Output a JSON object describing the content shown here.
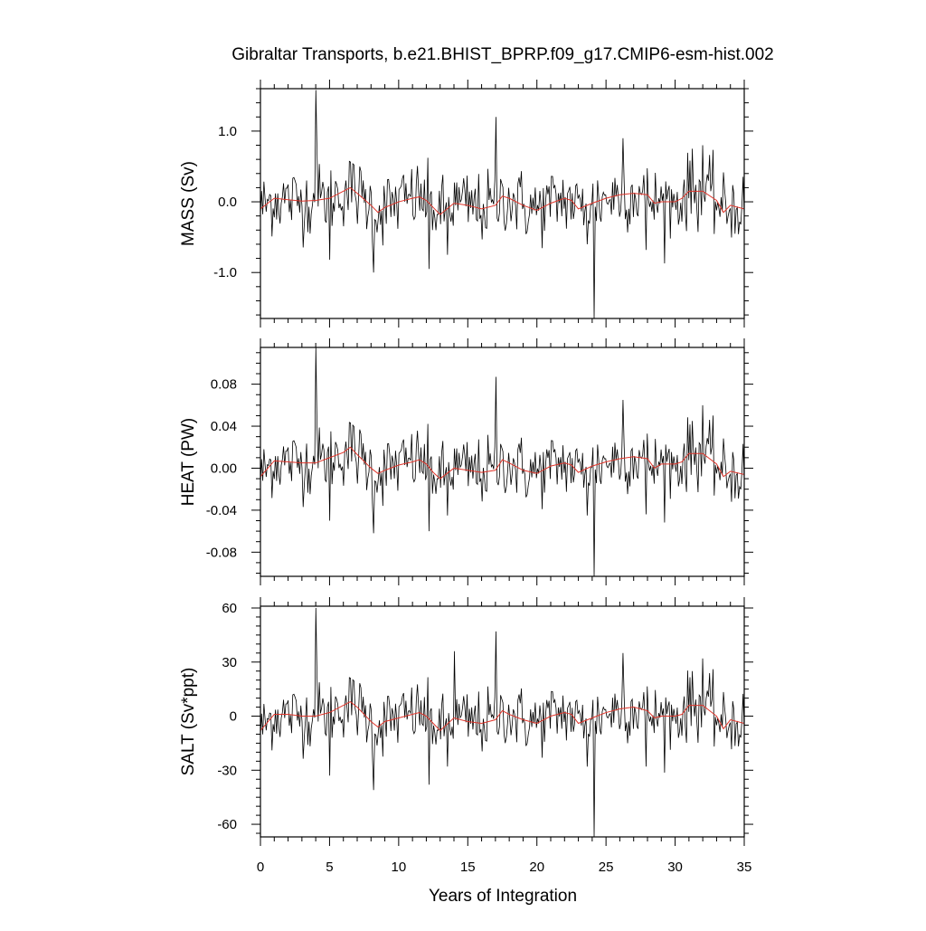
{
  "figure": {
    "title": "Gibraltar Transports, b.e21.BHIST_BPRP.f09_g17.CMIP6-esm-hist.002",
    "xlabel": "Years of Integration",
    "colors": {
      "raw": "#000000",
      "smoothed": "#e0342a",
      "frame": "#000000"
    }
  },
  "chart_data": [
    {
      "type": "line",
      "ylabel": "MASS (Sv)",
      "xlim": [
        0,
        35
      ],
      "ylim": [
        -1.65,
        1.6
      ],
      "yticks": [
        -1.0,
        0.0,
        1.0
      ],
      "ytick_labels": [
        "-1.0",
        "0.0",
        "1.0"
      ],
      "yminor_step": 0.2,
      "xticks": [
        0,
        5,
        10,
        15,
        20,
        25,
        30,
        35
      ],
      "xtick_labels": [],
      "xminor_step": 1,
      "raw_scale": 0.25,
      "spikes": [
        [
          4.0,
          1.58
        ],
        [
          4.08,
          0.7
        ],
        [
          5.0,
          -0.82
        ],
        [
          8.2,
          -1.0
        ],
        [
          12.2,
          -0.95
        ],
        [
          13.5,
          -0.75
        ],
        [
          17.0,
          1.2
        ],
        [
          23.6,
          -0.6
        ],
        [
          24.1,
          -1.65
        ],
        [
          26.2,
          0.9
        ],
        [
          27.9,
          -0.68
        ],
        [
          31.2,
          0.75
        ],
        [
          32.0,
          0.8
        ]
      ],
      "smoothed": {
        "x": [
          0,
          1,
          2,
          3,
          4,
          5,
          6,
          6.5,
          7,
          8,
          8.5,
          9,
          10,
          11,
          11.5,
          12,
          12.5,
          13,
          14,
          15,
          16,
          17,
          17.5,
          18,
          19,
          20,
          21,
          22,
          22.5,
          23,
          24,
          25,
          26,
          27,
          28,
          28.5,
          29,
          30,
          30.5,
          31,
          32,
          33,
          33.5,
          34,
          35
        ],
        "y": [
          -0.1,
          0.05,
          0.03,
          0.01,
          0.02,
          0.05,
          0.15,
          0.2,
          0.12,
          -0.05,
          -0.15,
          -0.08,
          0.0,
          0.05,
          0.07,
          0.02,
          -0.08,
          -0.18,
          -0.02,
          -0.05,
          -0.1,
          -0.05,
          0.08,
          0.05,
          -0.05,
          -0.12,
          -0.02,
          0.05,
          0.02,
          -0.1,
          -0.02,
          0.05,
          0.1,
          0.12,
          0.1,
          -0.02,
          0.0,
          0.0,
          0.05,
          0.15,
          0.15,
          0.02,
          -0.15,
          -0.05,
          -0.1
        ]
      }
    },
    {
      "type": "line",
      "ylabel": "HEAT (PW)",
      "xlim": [
        0,
        35
      ],
      "ylim": [
        -0.103,
        0.115
      ],
      "yticks": [
        -0.08,
        -0.04,
        0.0,
        0.04,
        0.08
      ],
      "ytick_labels": [
        "-0.08",
        "-0.04",
        "0.00",
        "0.04",
        "0.08"
      ],
      "yminor_step": 0.01,
      "xticks": [
        0,
        5,
        10,
        15,
        20,
        25,
        30,
        35
      ],
      "xtick_labels": [],
      "xminor_step": 1,
      "raw_scale": 0.016,
      "spikes": [
        [
          4.0,
          0.115
        ],
        [
          4.08,
          0.04
        ],
        [
          5.0,
          -0.05
        ],
        [
          8.2,
          -0.062
        ],
        [
          12.2,
          -0.06
        ],
        [
          13.5,
          -0.045
        ],
        [
          17.0,
          0.087
        ],
        [
          23.6,
          -0.045
        ],
        [
          24.1,
          -0.103
        ],
        [
          26.2,
          0.065
        ],
        [
          27.9,
          -0.044
        ],
        [
          31.2,
          0.045
        ],
        [
          32.0,
          0.06
        ]
      ],
      "smoothed": {
        "x": [
          0,
          1,
          2,
          3,
          4,
          5,
          6,
          6.5,
          7,
          8,
          8.5,
          9,
          10,
          11,
          11.5,
          12,
          12.5,
          13,
          14,
          15,
          16,
          17,
          17.5,
          18,
          19,
          20,
          21,
          22,
          22.5,
          23,
          24,
          25,
          26,
          27,
          28,
          28.5,
          29,
          30,
          30.5,
          31,
          32,
          33,
          33.5,
          34,
          35
        ],
        "y": [
          -0.008,
          0.007,
          0.006,
          0.005,
          0.005,
          0.01,
          0.015,
          0.02,
          0.013,
          0.0,
          -0.005,
          -0.002,
          0.003,
          0.006,
          0.008,
          0.004,
          -0.004,
          -0.01,
          0.0,
          -0.002,
          -0.004,
          -0.002,
          0.008,
          0.005,
          -0.002,
          -0.005,
          0.002,
          0.005,
          0.003,
          -0.004,
          0.002,
          0.006,
          0.009,
          0.011,
          0.009,
          0.0,
          0.004,
          0.004,
          0.006,
          0.014,
          0.014,
          0.004,
          -0.008,
          -0.003,
          -0.006
        ]
      }
    },
    {
      "type": "line",
      "ylabel": "SALT (Sv*ppt)",
      "xlim": [
        0,
        35
      ],
      "ylim": [
        -67,
        61
      ],
      "yticks": [
        -60,
        -30,
        0,
        30,
        60
      ],
      "ytick_labels": [
        "-60",
        "-30",
        "0",
        "30",
        "60"
      ],
      "yminor_step": 5,
      "xticks": [
        0,
        5,
        10,
        15,
        20,
        25,
        30,
        35
      ],
      "xtick_labels": [
        "0",
        "5",
        "10",
        "15",
        "20",
        "25",
        "30",
        "35"
      ],
      "xminor_step": 1,
      "raw_scale": 9.0,
      "spikes": [
        [
          4.0,
          60
        ],
        [
          4.08,
          22
        ],
        [
          5.0,
          -33
        ],
        [
          8.2,
          -41
        ],
        [
          12.2,
          -38
        ],
        [
          13.5,
          -28
        ],
        [
          14.0,
          36
        ],
        [
          17.0,
          47
        ],
        [
          23.6,
          -28
        ],
        [
          24.1,
          -67
        ],
        [
          26.2,
          35
        ],
        [
          27.9,
          -28
        ],
        [
          31.2,
          25
        ],
        [
          32.0,
          32
        ]
      ],
      "smoothed": {
        "x": [
          0,
          1,
          2,
          3,
          4,
          5,
          6,
          6.5,
          7,
          8,
          8.5,
          9,
          10,
          11,
          11.5,
          12,
          12.5,
          13,
          14,
          15,
          16,
          17,
          17.5,
          18,
          19,
          20,
          21,
          22,
          22.5,
          23,
          24,
          25,
          26,
          27,
          28,
          28.5,
          29,
          30,
          30.5,
          31,
          32,
          33,
          33.5,
          34,
          35
        ],
        "y": [
          -8,
          1,
          1,
          0,
          0,
          2,
          6,
          8,
          5,
          -3,
          -6,
          -3,
          -1,
          1,
          2,
          0,
          -4,
          -8,
          -1,
          -3,
          -4,
          -2,
          3,
          1,
          -2,
          -4,
          0,
          2,
          1,
          -4,
          -1,
          2,
          4,
          5,
          3,
          -1,
          0,
          0,
          1,
          6,
          6,
          0,
          -7,
          -2,
          -4
        ]
      }
    }
  ]
}
